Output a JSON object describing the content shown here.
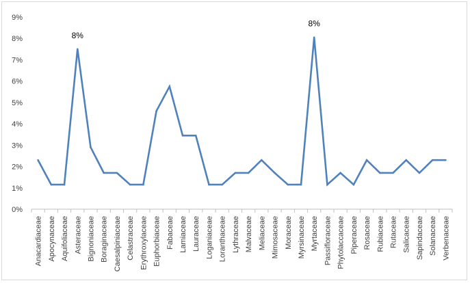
{
  "chart_data": {
    "type": "line",
    "title": "",
    "xlabel": "",
    "ylabel": "",
    "ylim": [
      0,
      9
    ],
    "y_tick_labels": [
      "0%",
      "1%",
      "2%",
      "3%",
      "4%",
      "5%",
      "6%",
      "7%",
      "8%",
      "9%"
    ],
    "grid": false,
    "legend": "none",
    "categories": [
      "Anacardiaceae",
      "Apocynaceae",
      "Aquifoliaceae",
      "Asteraceae",
      "Bignoniaceae",
      "Boraginaceae",
      "Caesalpiniaceae",
      "Celastraceae",
      "Erythroxylaceae",
      "Euphorbiaceae",
      "Fabaceae",
      "Lamiaceae",
      "Lauraceae",
      "Loganiaceae",
      "Loranthaceae",
      "Lythraceae",
      "Malvaceae",
      "Meliaceae",
      "Mimosaceae",
      "Moraceae",
      "Myrsinaceae",
      "Myrtaceae",
      "Passifloraceae",
      "Phytolaccaceae",
      "Piperaceae",
      "Rosaceae",
      "Rubiaceae",
      "Rutaceae",
      "Salicaceae",
      "Sapindaceae",
      "Solanaceae",
      "Verbenaceae"
    ],
    "series": [
      {
        "values": [
          2.3,
          1.15,
          1.15,
          7.5,
          2.9,
          1.7,
          1.7,
          1.15,
          1.15,
          4.6,
          5.75,
          3.45,
          3.45,
          1.15,
          1.15,
          1.7,
          1.7,
          2.3,
          1.7,
          1.15,
          1.15,
          8.05,
          1.15,
          1.7,
          1.15,
          2.3,
          1.7,
          1.7,
          2.3,
          1.7,
          2.3,
          2.3
        ],
        "color": "#4f81bd"
      }
    ],
    "annotations": [
      {
        "category": "Asteraceae",
        "text": "8%"
      },
      {
        "category": "Myrtaceae",
        "text": "8%"
      }
    ]
  }
}
